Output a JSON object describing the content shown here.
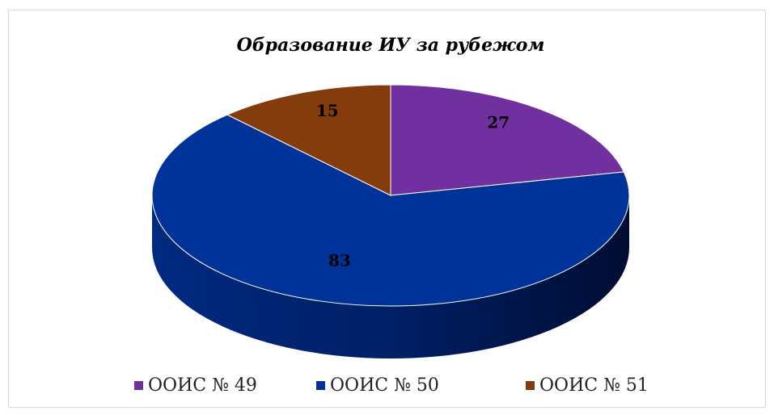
{
  "chart_data": {
    "type": "pie",
    "title": "Образование ИУ за рубежом",
    "categories": [
      "ООИС № 49",
      "ООИС № 50",
      "ООИС № 51"
    ],
    "values": [
      27,
      83,
      15
    ],
    "colors": [
      "#7030a0",
      "#003399",
      "#843c0c"
    ],
    "legend": "bottom"
  }
}
